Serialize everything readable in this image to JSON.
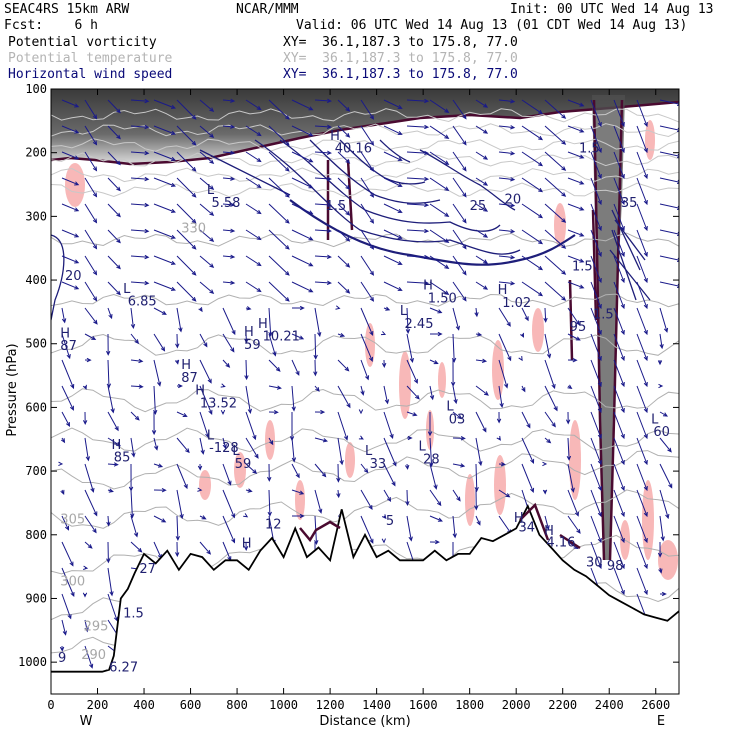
{
  "header": {
    "model": "SEAC4RS 15km ARW",
    "org": "NCAR/MMM",
    "init": "Init: 00 UTC Wed 14 Aug 13",
    "fcst": "Fcst:    6 h",
    "valid": "Valid: 06 UTC Wed 14 Aug 13 (01 CDT Wed 14 Aug 13)"
  },
  "legend": [
    {
      "name": "Potential vorticity",
      "xy": "XY=  36.1,187.3 to 175.8, 77.0",
      "color": "#000000"
    },
    {
      "name": "Potential temperature",
      "xy": "XY=  36.1,187.3 to 175.8, 77.0",
      "color": "#b4b4b4"
    },
    {
      "name": "Horizontal wind speed",
      "xy": "XY=  36.1,187.3 to 175.8, 77.0",
      "color": "#0a0a78"
    }
  ],
  "chart_data": {
    "type": "cross-section",
    "xlabel": "Distance (km)",
    "ylabel": "Pressure (hPa)",
    "xlim": [
      0,
      2700
    ],
    "ylim": [
      1050,
      100
    ],
    "x_ticks": [
      "0",
      "200",
      "400",
      "600",
      "800",
      "1000",
      "1200",
      "1400",
      "1600",
      "1800",
      "2000",
      "2200",
      "2400",
      "2600"
    ],
    "y_ticks": [
      "100",
      "200",
      "300",
      "400",
      "500",
      "600",
      "700",
      "800",
      "900",
      "1000"
    ],
    "x_ends": {
      "left": "W",
      "right": "E"
    },
    "terrain_pressure": {
      "x": [
        0,
        220,
        250,
        270,
        300,
        330,
        360,
        400,
        450,
        500,
        550,
        600,
        650,
        700,
        750,
        800,
        850,
        900,
        950,
        1000,
        1050,
        1100,
        1150,
        1200,
        1250,
        1300,
        1350,
        1400,
        1450,
        1500,
        1550,
        1600,
        1650,
        1700,
        1750,
        1800,
        1850,
        1900,
        1950,
        2000,
        2050,
        2100,
        2150,
        2200,
        2250,
        2300,
        2350,
        2400,
        2450,
        2500,
        2550,
        2600,
        2650,
        2700
      ],
      "p": [
        1015,
        1015,
        1012,
        990,
        900,
        885,
        860,
        830,
        845,
        825,
        855,
        830,
        835,
        855,
        840,
        840,
        855,
        825,
        805,
        835,
        790,
        835,
        820,
        840,
        760,
        835,
        800,
        835,
        825,
        840,
        840,
        840,
        825,
        840,
        830,
        830,
        805,
        810,
        800,
        790,
        755,
        800,
        820,
        840,
        855,
        865,
        880,
        895,
        905,
        915,
        925,
        930,
        935,
        920
      ]
    },
    "annotations": [
      {
        "text": "L",
        "x": 670,
        "y": 265
      },
      {
        "text": "5.58",
        "x": 690,
        "y": 285
      },
      {
        "text": "H",
        "x": 1200,
        "y": 180
      },
      {
        "text": "40.16",
        "x": 1220,
        "y": 200
      },
      {
        "text": "L",
        "x": 310,
        "y": 420
      },
      {
        "text": "6.85",
        "x": 330,
        "y": 440
      },
      {
        "text": "H",
        "x": 40,
        "y": 490
      },
      {
        "text": "87",
        "x": 40,
        "y": 510
      },
      {
        "text": "H",
        "x": 890,
        "y": 475
      },
      {
        "text": "10.21",
        "x": 910,
        "y": 495
      },
      {
        "text": "H",
        "x": 830,
        "y": 488
      },
      {
        "text": "59",
        "x": 830,
        "y": 508
      },
      {
        "text": "H",
        "x": 560,
        "y": 540
      },
      {
        "text": "87",
        "x": 560,
        "y": 560
      },
      {
        "text": "H",
        "x": 620,
        "y": 580
      },
      {
        "text": "13.52",
        "x": 640,
        "y": 600
      },
      {
        "text": "L",
        "x": 670,
        "y": 650
      },
      {
        "text": "-128",
        "x": 680,
        "y": 670
      },
      {
        "text": "L",
        "x": 780,
        "y": 675
      },
      {
        "text": "59",
        "x": 790,
        "y": 695
      },
      {
        "text": "H",
        "x": 260,
        "y": 665
      },
      {
        "text": "85",
        "x": 270,
        "y": 685
      },
      {
        "text": "L",
        "x": 1350,
        "y": 675
      },
      {
        "text": "33",
        "x": 1370,
        "y": 695
      },
      {
        "text": "L",
        "x": 1580,
        "y": 668
      },
      {
        "text": "28",
        "x": 1600,
        "y": 688
      },
      {
        "text": "L",
        "x": 1500,
        "y": 455
      },
      {
        "text": "2.45",
        "x": 1520,
        "y": 475
      },
      {
        "text": "H",
        "x": 1600,
        "y": 415
      },
      {
        "text": "1.50",
        "x": 1620,
        "y": 435
      },
      {
        "text": "H",
        "x": 1920,
        "y": 422
      },
      {
        "text": "1.02",
        "x": 1940,
        "y": 442
      },
      {
        "text": "L",
        "x": 1700,
        "y": 605
      },
      {
        "text": "03",
        "x": 1710,
        "y": 625
      },
      {
        "text": "H",
        "x": 1990,
        "y": 780
      },
      {
        "text": "34",
        "x": 2010,
        "y": 795
      },
      {
        "text": "H",
        "x": 2120,
        "y": 800
      },
      {
        "text": "4.16",
        "x": 2130,
        "y": 818
      },
      {
        "text": "L",
        "x": 2580,
        "y": 625
      },
      {
        "text": "60",
        "x": 2590,
        "y": 645
      },
      {
        "text": "95",
        "x": 2230,
        "y": 480
      },
      {
        "text": "1.5",
        "x": 2240,
        "y": 385
      },
      {
        "text": "1.5",
        "x": 2330,
        "y": 460
      },
      {
        "text": "35",
        "x": 2450,
        "y": 285
      },
      {
        "text": "1.5",
        "x": 2270,
        "y": 200
      },
      {
        "text": "25",
        "x": 1800,
        "y": 290
      },
      {
        "text": "20",
        "x": 1950,
        "y": 280
      },
      {
        "text": "20",
        "x": 60,
        "y": 400
      },
      {
        "text": "1.5",
        "x": 1180,
        "y": 290
      },
      {
        "text": "H",
        "x": 820,
        "y": 820
      },
      {
        "text": "12",
        "x": 920,
        "y": 790
      },
      {
        "text": "5",
        "x": 1440,
        "y": 785
      },
      {
        "text": "27",
        "x": 380,
        "y": 860
      },
      {
        "text": "1.5",
        "x": 310,
        "y": 930
      },
      {
        "text": "6.27",
        "x": 250,
        "y": 1015
      },
      {
        "text": "9",
        "x": 30,
        "y": 1000
      },
      {
        "text": "30",
        "x": 2300,
        "y": 850
      },
      {
        "text": "98",
        "x": 2390,
        "y": 855
      }
    ],
    "theta_labels": [
      {
        "text": "330",
        "x": 560,
        "y": 325
      },
      {
        "text": "305",
        "x": 40,
        "y": 782
      },
      {
        "text": "300",
        "x": 40,
        "y": 880
      },
      {
        "text": "295",
        "x": 140,
        "y": 950
      },
      {
        "text": "290",
        "x": 130,
        "y": 995
      }
    ]
  }
}
